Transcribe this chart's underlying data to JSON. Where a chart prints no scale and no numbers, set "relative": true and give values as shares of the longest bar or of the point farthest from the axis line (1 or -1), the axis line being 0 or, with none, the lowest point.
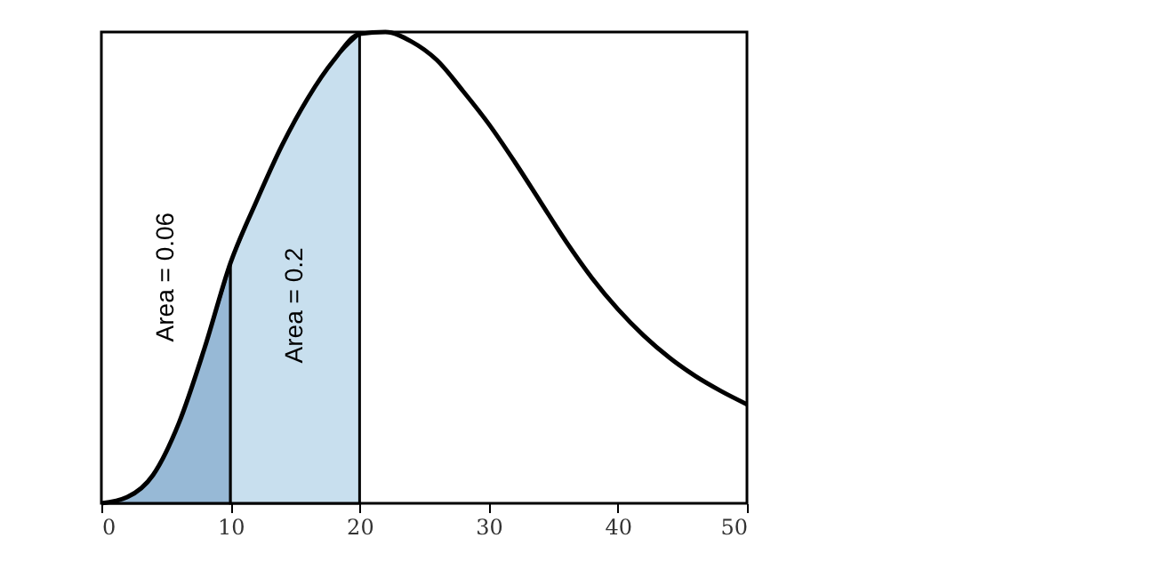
{
  "chart_data": {
    "type": "line",
    "relative": true,
    "tick_labels": "x",
    "x": [
      0,
      2,
      4,
      6,
      8,
      10,
      12,
      14,
      16,
      18,
      20,
      22,
      24,
      26,
      28,
      30,
      32,
      34,
      36,
      38,
      40,
      42,
      44,
      46,
      48,
      50
    ],
    "xlim": [
      0,
      50
    ],
    "xticks": [
      0,
      10,
      20,
      30,
      40,
      50
    ],
    "grid": false,
    "line_style": "solid",
    "series": [
      {
        "type": "area",
        "color": "#97b9d6",
        "x": [
          0,
          2,
          4,
          6,
          8,
          10
        ],
        "values": [
          0,
          0.013,
          0.06,
          0.17,
          0.33,
          0.51
        ]
      },
      {
        "type": "area",
        "color": "#c8dfee",
        "x": [
          10,
          12,
          14,
          16,
          18,
          20
        ],
        "values": [
          0.51,
          0.64,
          0.76,
          0.86,
          0.94,
          0.996
        ]
      },
      {
        "color": "#000000",
        "values": [
          0,
          0.013,
          0.06,
          0.17,
          0.33,
          0.51,
          0.64,
          0.76,
          0.86,
          0.94,
          0.996,
          1.0,
          0.98,
          0.94,
          0.875,
          0.805,
          0.725,
          0.64,
          0.555,
          0.478,
          0.412,
          0.356,
          0.309,
          0.27,
          0.238,
          0.21
        ]
      }
    ],
    "annotations": [
      "Area = 0.06",
      "Area = 0.2"
    ]
  }
}
